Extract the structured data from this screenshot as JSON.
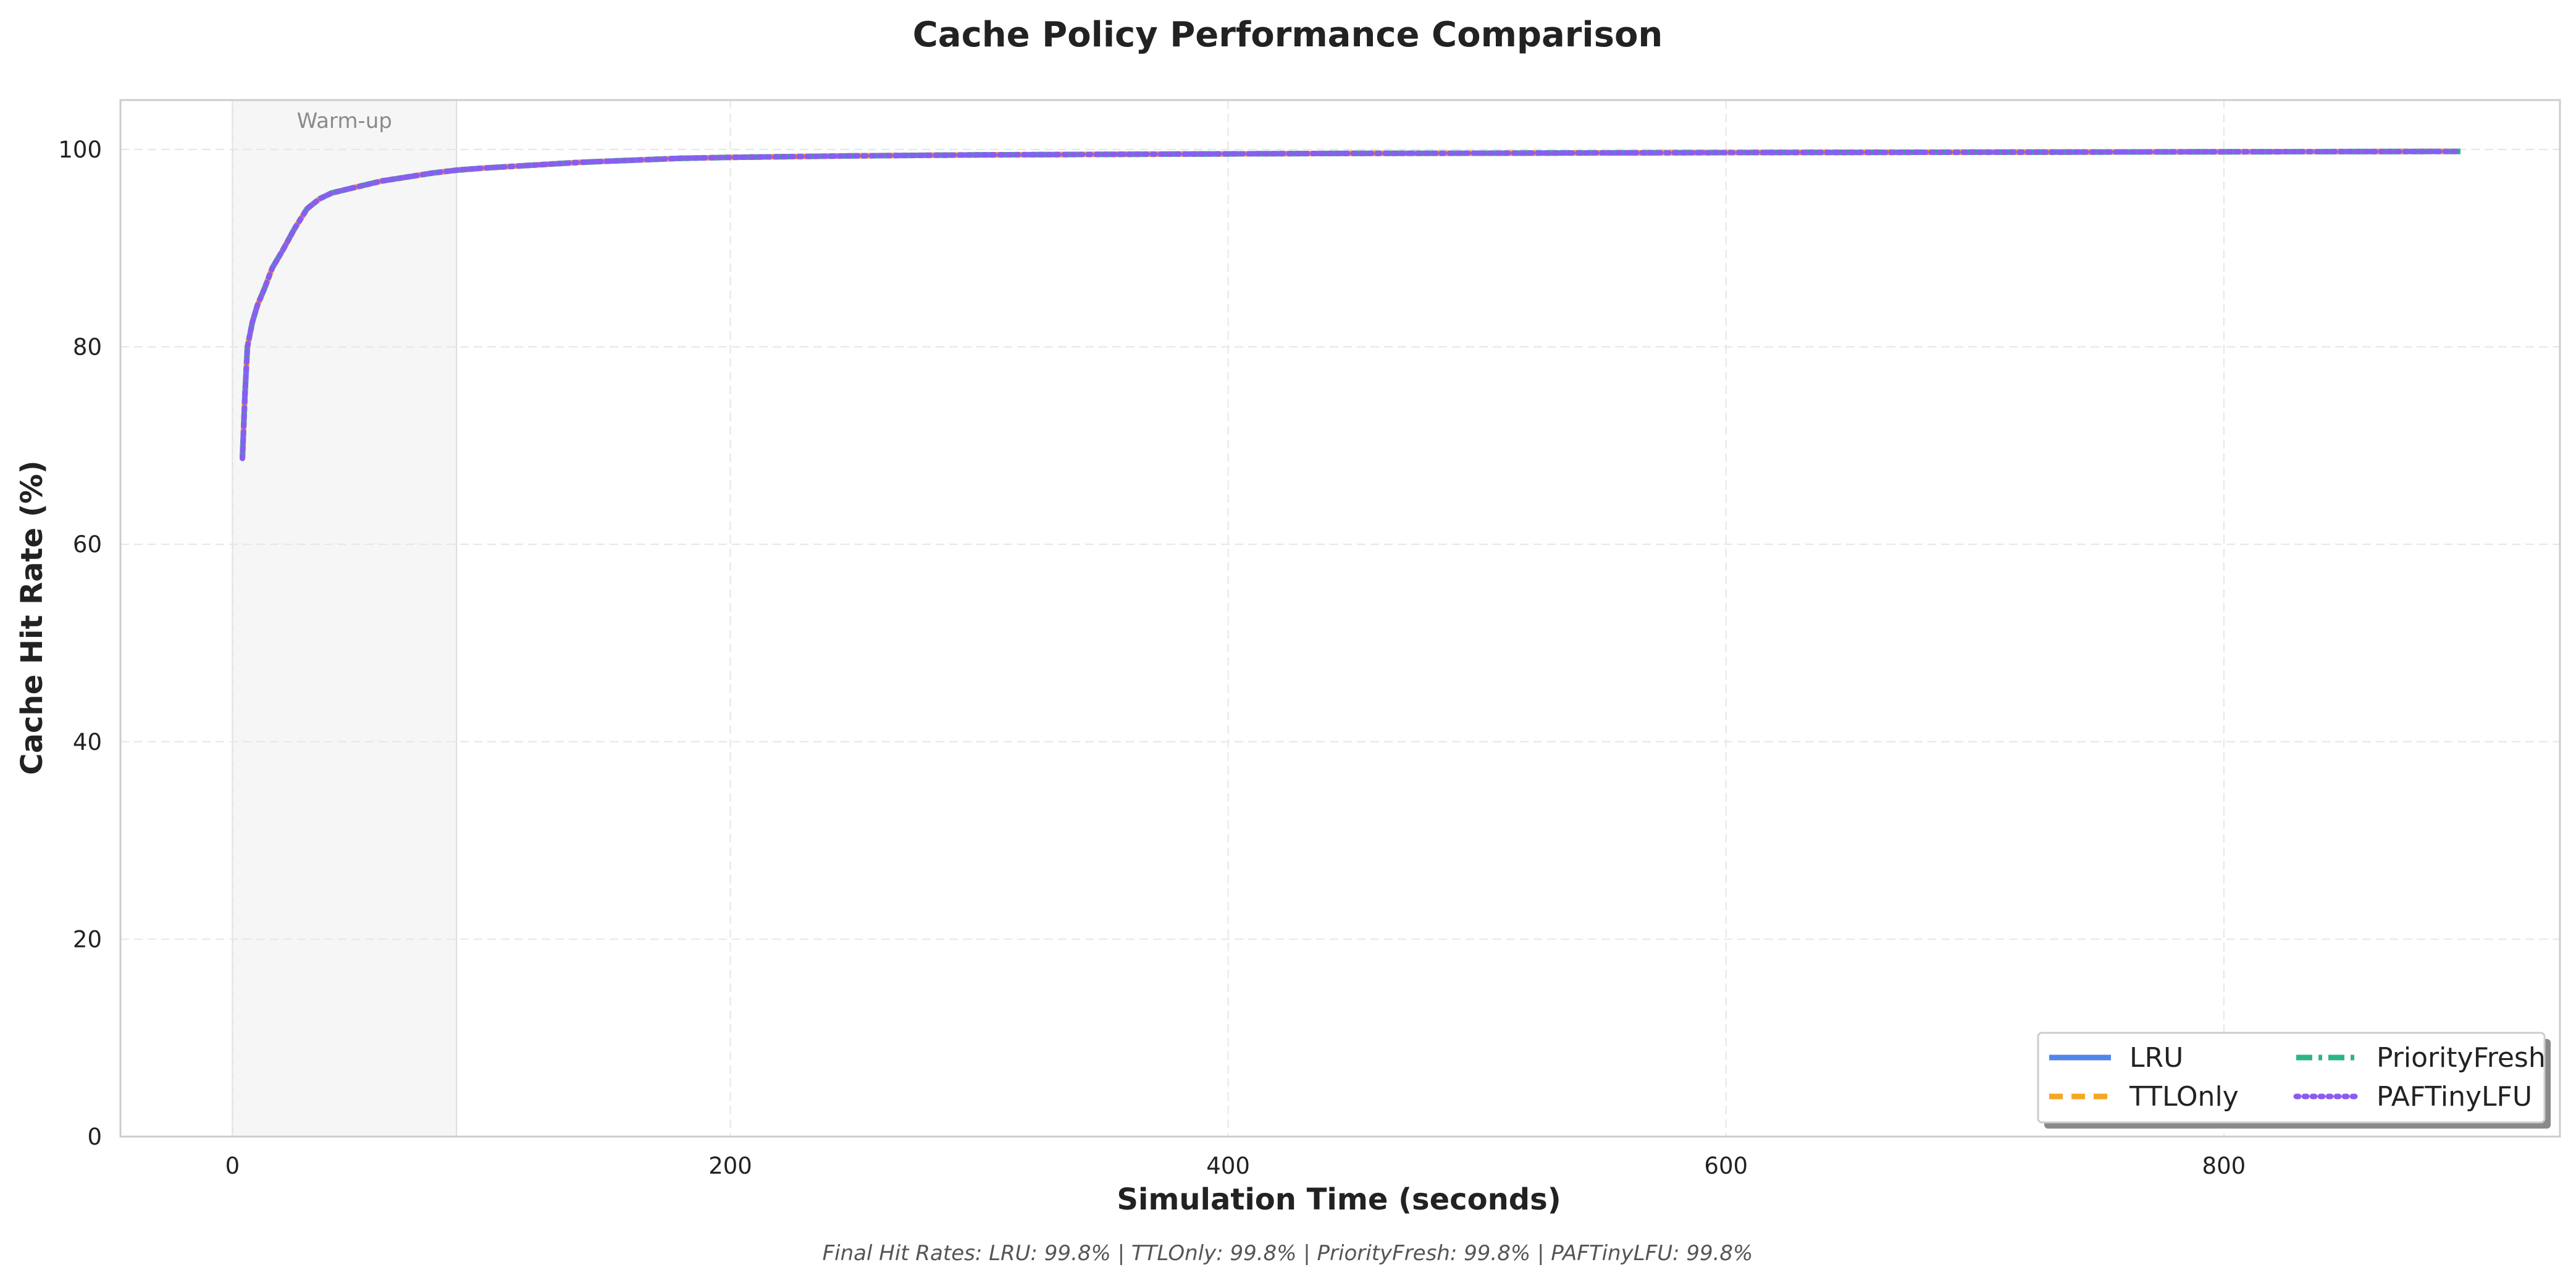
{
  "chart_data": {
    "type": "line",
    "title": "Cache Policy Performance Comparison",
    "xlabel": "Simulation Time (seconds)",
    "ylabel": "Cache Hit Rate (%)",
    "xlim": [
      -45,
      935
    ],
    "ylim": [
      0,
      105
    ],
    "x_ticks": [
      0,
      200,
      400,
      600,
      800
    ],
    "y_ticks": [
      0,
      20,
      40,
      60,
      80,
      100
    ],
    "grid": true,
    "legend_position": "lower-right",
    "shaded_regions": [
      {
        "x_start": 0,
        "x_end": 90,
        "label": "Warm-up"
      }
    ],
    "x": [
      4,
      5,
      6,
      8,
      10,
      13,
      16,
      20,
      25,
      30,
      35,
      40,
      50,
      60,
      70,
      80,
      90,
      100,
      120,
      140,
      160,
      180,
      200,
      250,
      300,
      350,
      400,
      450,
      500,
      550,
      600,
      650,
      700,
      750,
      800,
      850,
      895
    ],
    "series": [
      {
        "name": "LRU",
        "color": "#4f86e8",
        "style": "solid",
        "values": [
          68.7,
          75.0,
          80.0,
          82.5,
          84.2,
          86.0,
          88.0,
          89.7,
          92.0,
          94.0,
          95.0,
          95.6,
          96.2,
          96.8,
          97.2,
          97.6,
          97.9,
          98.1,
          98.4,
          98.7,
          98.9,
          99.1,
          99.2,
          99.35,
          99.45,
          99.5,
          99.55,
          99.6,
          99.62,
          99.65,
          99.68,
          99.7,
          99.72,
          99.74,
          99.76,
          99.78,
          99.8
        ]
      },
      {
        "name": "TTLOnly",
        "color": "#f5a623",
        "style": "dashed",
        "values": [
          68.7,
          75.0,
          80.0,
          82.5,
          84.2,
          86.0,
          88.0,
          89.7,
          92.0,
          94.0,
          95.0,
          95.6,
          96.2,
          96.8,
          97.2,
          97.6,
          97.9,
          98.1,
          98.4,
          98.7,
          98.9,
          99.1,
          99.2,
          99.35,
          99.45,
          99.5,
          99.55,
          99.6,
          99.62,
          99.65,
          99.68,
          99.7,
          99.72,
          99.74,
          99.76,
          99.78,
          99.8
        ]
      },
      {
        "name": "PriorityFresh",
        "color": "#2bb58a",
        "style": "dashdot",
        "values": [
          68.7,
          75.0,
          80.0,
          82.5,
          84.2,
          86.0,
          88.0,
          89.7,
          92.0,
          94.0,
          95.0,
          95.6,
          96.2,
          96.8,
          97.2,
          97.6,
          97.9,
          98.1,
          98.4,
          98.7,
          98.9,
          99.1,
          99.2,
          99.35,
          99.45,
          99.5,
          99.55,
          99.6,
          99.62,
          99.65,
          99.68,
          99.7,
          99.72,
          99.74,
          99.76,
          99.78,
          99.8
        ]
      },
      {
        "name": "PAFTinyLFU",
        "color": "#8c5cf0",
        "style": "dotted",
        "values": [
          68.7,
          75.0,
          80.0,
          82.5,
          84.2,
          86.0,
          88.0,
          89.7,
          92.0,
          94.0,
          95.0,
          95.6,
          96.2,
          96.8,
          97.2,
          97.6,
          97.9,
          98.1,
          98.4,
          98.7,
          98.9,
          99.1,
          99.2,
          99.35,
          99.45,
          99.5,
          99.55,
          99.6,
          99.62,
          99.65,
          99.68,
          99.7,
          99.72,
          99.74,
          99.76,
          99.78,
          99.8
        ]
      }
    ],
    "footer_note": "Final Hit Rates: LRU: 99.8% | TTLOnly: 99.8% | PriorityFresh: 99.8% | PAFTinyLFU: 99.8%"
  }
}
